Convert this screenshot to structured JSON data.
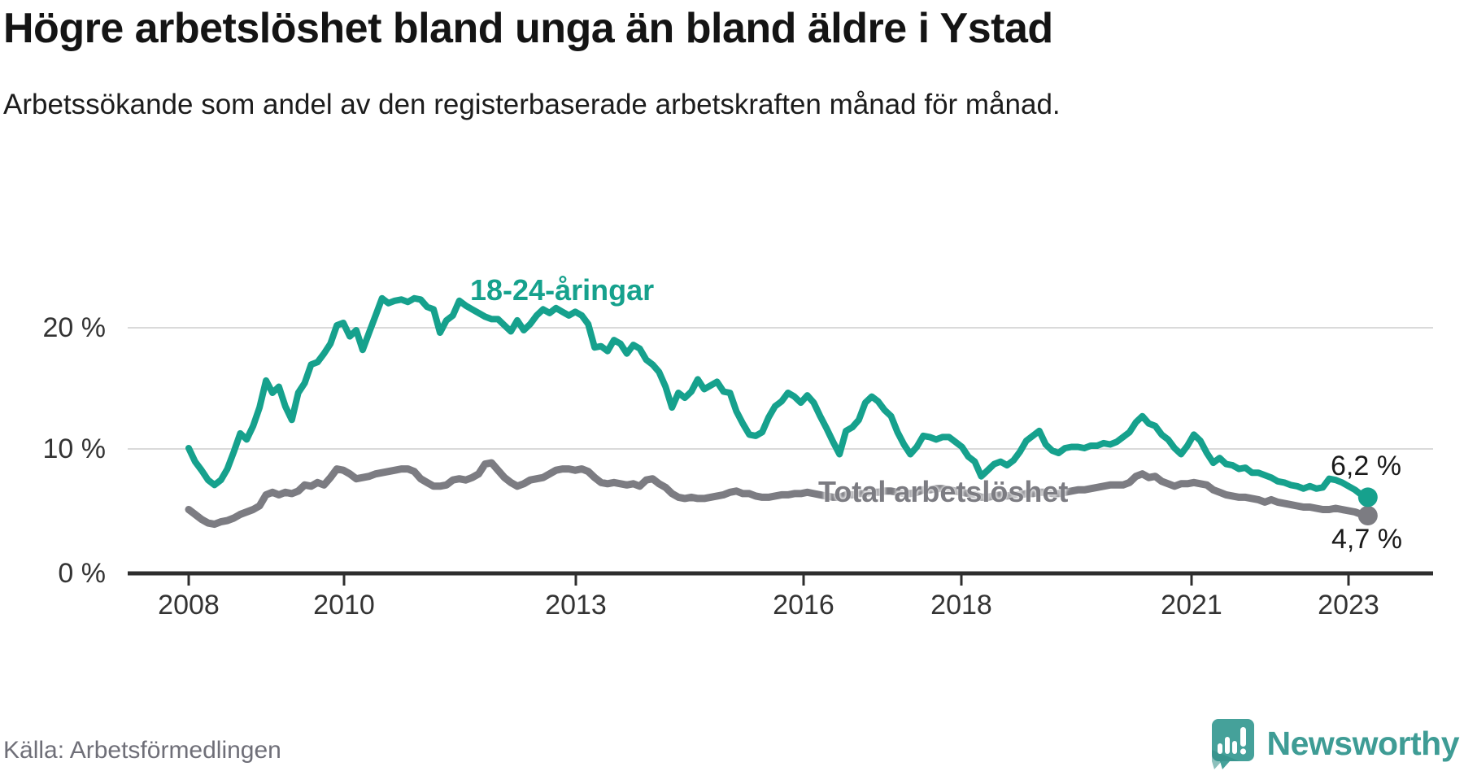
{
  "header": {
    "title": "Högre arbetslöshet bland unga än bland äldre i Ystad",
    "subtitle": "Arbetssökande som andel av den registerbaserade arbetskraften månad för månad."
  },
  "chart_data": {
    "type": "line",
    "title": "Högre arbetslöshet bland unga än bland äldre i Ystad",
    "subtitle": "Arbetssökande som andel av den registerbaserade arbetskraften månad för månad.",
    "unit": "%",
    "frequency": "monthly",
    "start": "2008-01",
    "end": "2023-04",
    "grid": "horizontal",
    "ylim": [
      0,
      24.5
    ],
    "y_tick_values": [
      20,
      10,
      0
    ],
    "y_tick_labels": [
      "20 %",
      "10 %",
      "0 %"
    ],
    "x_tick_labels": [
      "2008",
      "2010",
      "2013",
      "2016",
      "2018",
      "2021",
      "2023"
    ],
    "series": [
      {
        "name": "18-24-åringar",
        "color": "#16a18d",
        "end_label": "6,2 %",
        "end_value": 6.2,
        "values": [
          10.2,
          9.1,
          8.4,
          7.6,
          7.2,
          7.6,
          8.5,
          9.9,
          11.4,
          10.9,
          12.0,
          13.5,
          15.7,
          14.7,
          15.2,
          13.6,
          12.5,
          14.7,
          15.5,
          17.0,
          17.2,
          17.9,
          18.7,
          20.2,
          20.4,
          19.3,
          19.8,
          18.2,
          19.6,
          21.0,
          22.4,
          22.0,
          22.2,
          22.3,
          22.1,
          22.4,
          22.3,
          21.7,
          21.5,
          19.6,
          20.6,
          21.0,
          22.2,
          21.8,
          21.5,
          21.2,
          20.9,
          20.7,
          20.7,
          20.2,
          19.7,
          20.6,
          19.8,
          20.3,
          21.0,
          21.5,
          21.2,
          21.6,
          21.3,
          21.0,
          21.3,
          21.0,
          20.3,
          18.4,
          18.5,
          18.1,
          19.0,
          18.7,
          17.9,
          18.6,
          18.3,
          17.4,
          17.0,
          16.4,
          15.2,
          13.5,
          14.7,
          14.3,
          14.8,
          15.8,
          15.0,
          15.3,
          15.6,
          14.8,
          14.7,
          13.2,
          12.2,
          11.3,
          11.2,
          11.5,
          12.7,
          13.6,
          14.0,
          14.7,
          14.4,
          13.9,
          14.5,
          13.9,
          12.8,
          11.8,
          10.7,
          9.7,
          11.6,
          11.9,
          12.5,
          13.9,
          14.4,
          14.0,
          13.3,
          12.8,
          11.5,
          10.5,
          9.7,
          10.3,
          11.2,
          11.1,
          10.9,
          11.1,
          11.1,
          10.7,
          10.3,
          9.5,
          9.1,
          7.9,
          8.4,
          8.9,
          9.1,
          8.8,
          9.2,
          9.9,
          10.8,
          11.2,
          11.6,
          10.5,
          10.0,
          9.8,
          10.2,
          10.3,
          10.3,
          10.2,
          10.4,
          10.4,
          10.6,
          10.5,
          10.7,
          11.1,
          11.5,
          12.3,
          12.8,
          12.2,
          12.0,
          11.3,
          10.9,
          10.2,
          9.7,
          10.4,
          11.3,
          10.8,
          9.8,
          9.0,
          9.4,
          8.9,
          8.8,
          8.5,
          8.6,
          8.2,
          8.2,
          8.0,
          7.8,
          7.5,
          7.4,
          7.2,
          7.1,
          6.9,
          7.1,
          6.9,
          7.0,
          7.7,
          7.6,
          7.4,
          7.1,
          6.8,
          6.4,
          6.2
        ]
      },
      {
        "name": "Total arbetslöshet",
        "color": "#7c7c82",
        "end_label": "4,7 %",
        "end_value": 4.7,
        "values": [
          5.2,
          4.8,
          4.4,
          4.1,
          4.0,
          4.2,
          4.3,
          4.5,
          4.8,
          5.0,
          5.2,
          5.5,
          6.4,
          6.6,
          6.4,
          6.6,
          6.5,
          6.7,
          7.2,
          7.1,
          7.4,
          7.2,
          7.8,
          8.5,
          8.4,
          8.1,
          7.7,
          7.8,
          7.9,
          8.1,
          8.2,
          8.3,
          8.4,
          8.5,
          8.5,
          8.3,
          7.7,
          7.4,
          7.1,
          7.1,
          7.2,
          7.6,
          7.7,
          7.6,
          7.8,
          8.1,
          8.9,
          9.0,
          8.4,
          7.8,
          7.4,
          7.1,
          7.3,
          7.6,
          7.7,
          7.8,
          8.1,
          8.4,
          8.5,
          8.5,
          8.4,
          8.5,
          8.3,
          7.8,
          7.4,
          7.3,
          7.4,
          7.3,
          7.2,
          7.3,
          7.1,
          7.6,
          7.7,
          7.3,
          7.0,
          6.5,
          6.2,
          6.1,
          6.2,
          6.1,
          6.1,
          6.2,
          6.3,
          6.4,
          6.6,
          6.7,
          6.5,
          6.5,
          6.3,
          6.2,
          6.2,
          6.3,
          6.4,
          6.4,
          6.5,
          6.5,
          6.6,
          6.5,
          6.4,
          6.3,
          6.2,
          6.2,
          6.4,
          6.4,
          6.5,
          6.5,
          6.6,
          6.6,
          6.7,
          6.7,
          6.6,
          6.5,
          6.5,
          6.6,
          6.8,
          6.8,
          6.9,
          6.9,
          6.8,
          6.7,
          6.6,
          6.5,
          6.4,
          6.2,
          6.2,
          6.3,
          6.4,
          6.3,
          6.4,
          6.4,
          6.5,
          6.5,
          6.6,
          6.6,
          6.5,
          6.5,
          6.6,
          6.7,
          6.8,
          6.8,
          6.9,
          7.0,
          7.1,
          7.2,
          7.2,
          7.2,
          7.4,
          7.9,
          8.1,
          7.8,
          7.9,
          7.5,
          7.3,
          7.1,
          7.3,
          7.3,
          7.4,
          7.3,
          7.2,
          6.8,
          6.6,
          6.4,
          6.3,
          6.2,
          6.2,
          6.1,
          6.0,
          5.8,
          6.0,
          5.8,
          5.7,
          5.6,
          5.5,
          5.4,
          5.4,
          5.3,
          5.2,
          5.2,
          5.3,
          5.2,
          5.1,
          5.0,
          4.8,
          4.7
        ]
      }
    ]
  },
  "footer": {
    "source": "Källa: Arbetsförmedlingen",
    "brand": "Newsworthy"
  }
}
